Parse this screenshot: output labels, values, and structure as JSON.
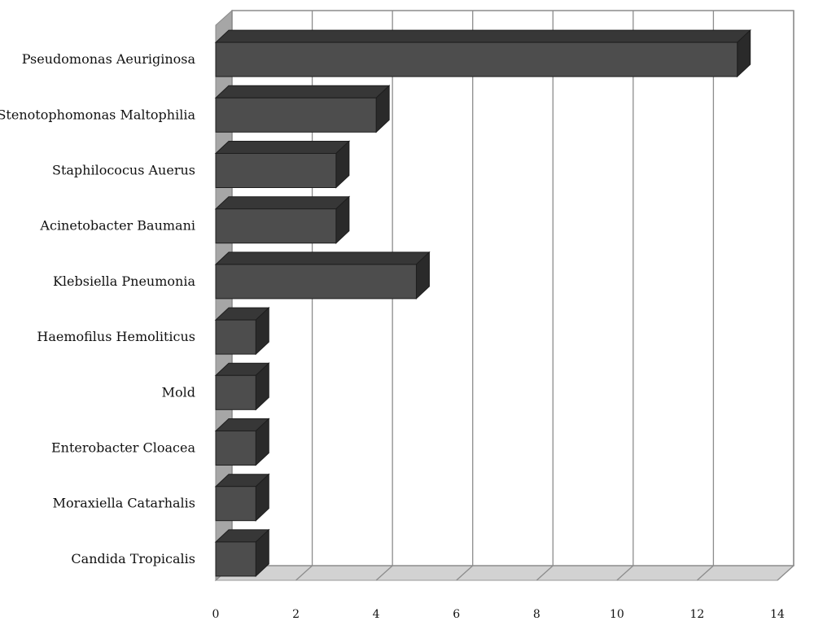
{
  "chart_data": {
    "type": "bar",
    "orientation": "horizontal",
    "style": "3d",
    "categories": [
      "Pseudomonas Aeuriginosa",
      "Stenotophomonas Maltophilia",
      "Staphilococus Auerus",
      "Acinetobacter Baumani",
      "Klebsiella Pneumonia",
      "Haemofilus Hemoliticus",
      "Mold",
      "Enterobacter Cloacea",
      "Moraxiella Catarhalis",
      "Candida Tropicalis"
    ],
    "values": [
      13,
      4,
      3,
      3,
      5,
      1,
      1,
      1,
      1,
      1
    ],
    "xlim": [
      0,
      14
    ],
    "xticks": [
      0,
      2,
      4,
      6,
      8,
      10,
      12,
      14
    ],
    "grid": true,
    "legend": "none",
    "colors": {
      "bar_front": "#4d4d4d",
      "bar_top": "#373737",
      "bar_side": "#2a2a2a",
      "wall": "#a6a6a6",
      "floor": "#d2d2d2",
      "grid": "#8c8c8c"
    }
  }
}
